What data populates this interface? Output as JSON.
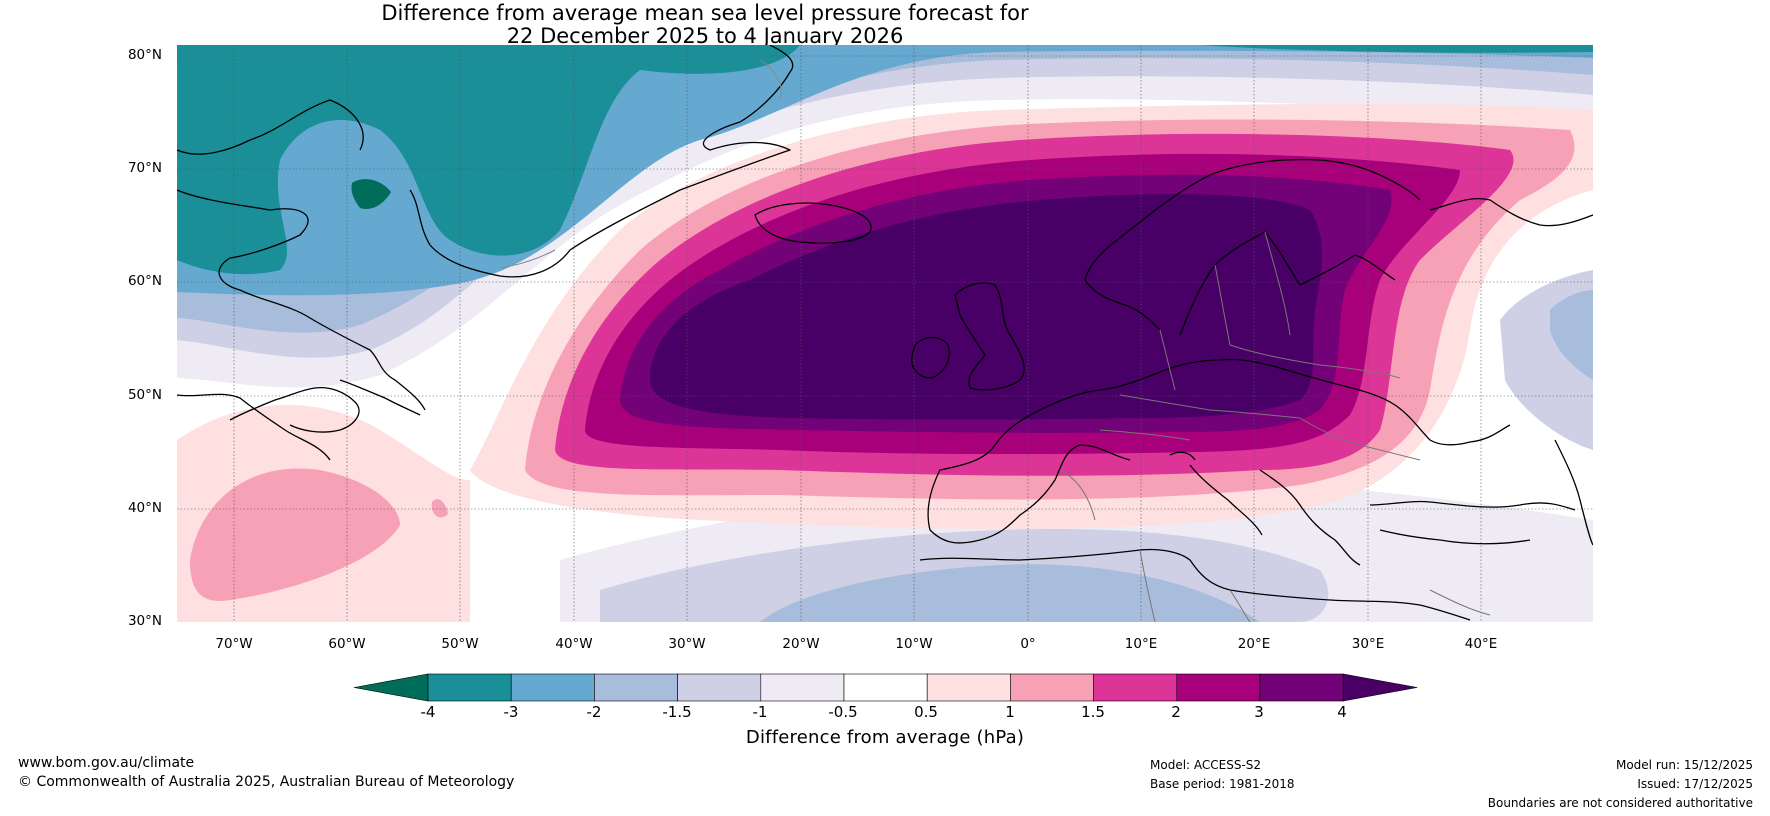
{
  "title_line1": "Difference from average mean sea level pressure forecast for",
  "title_line2": "22 December 2025 to 4 January 2026",
  "map": {
    "lat_labels": [
      "80°N",
      "70°N",
      "60°N",
      "50°N",
      "40°N",
      "30°N"
    ],
    "lon_labels": [
      "70°W",
      "60°W",
      "50°W",
      "40°W",
      "30°W",
      "20°W",
      "10°W",
      "0°",
      "10°E",
      "20°E",
      "30°E",
      "40°E"
    ],
    "extent": {
      "lon_min": -75,
      "lon_max": 50,
      "lat_min": 30,
      "lat_max": 81
    },
    "anomaly_centre": "positive pressure anomaly centred over the North Sea / Scandinavia",
    "colors": {
      "lt_-4": "#006d5b",
      "-4_-3": "#1a8f97",
      "-3_-2": "#66a9d0",
      "-2_-1.5": "#a8bcdb",
      "-1.5_-1": "#cfd0e5",
      "-1_-0.5": "#efebf4",
      "-0.5_0.5": "#ffffff",
      "0.5_1": "#fde0df",
      "1_1.5": "#f7a1b7",
      "1.5_2": "#dc3597",
      "2_3": "#a8007b",
      "3_4": "#730177",
      "gt_4": "#480067"
    }
  },
  "colorbar": {
    "ticks": [
      "-4",
      "-3",
      "-2",
      "-1.5",
      "-1",
      "-0.5",
      "0.5",
      "1",
      "1.5",
      "2",
      "3",
      "4"
    ],
    "label": "Difference from average (hPa)"
  },
  "footer": {
    "website": "www.bom.gov.au/climate",
    "copyright": "© Commonwealth of Australia 2025, Australian Bureau of Meteorology",
    "model": "Model: ACCESS-S2",
    "base_period": "Base period: 1981-2018",
    "model_run": "Model run: 15/12/2025",
    "issued": "Issued: 17/12/2025",
    "disclaimer": "Boundaries are not considered authoritative"
  }
}
